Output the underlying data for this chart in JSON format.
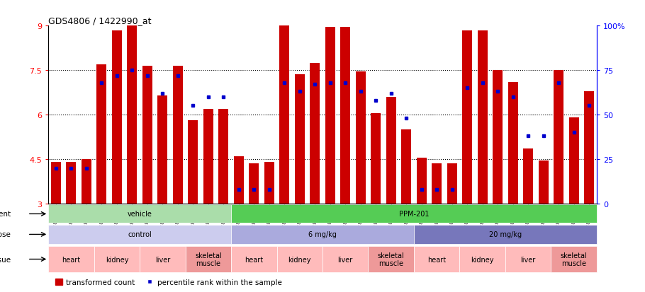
{
  "title": "GDS4806 / 1422990_at",
  "sample_ids": [
    "GSM783280",
    "GSM783281",
    "GSM783282",
    "GSM783289",
    "GSM783290",
    "GSM783291",
    "GSM783298",
    "GSM783299",
    "GSM783300",
    "GSM783307",
    "GSM783308",
    "GSM783309",
    "GSM783283",
    "GSM783284",
    "GSM783285",
    "GSM783292",
    "GSM783293",
    "GSM783294",
    "GSM783301",
    "GSM783302",
    "GSM783303",
    "GSM783310",
    "GSM783311",
    "GSM783312",
    "GSM783286",
    "GSM783287",
    "GSM783288",
    "GSM783295",
    "GSM783296",
    "GSM783297",
    "GSM783304",
    "GSM783305",
    "GSM783306",
    "GSM783313",
    "GSM783314",
    "GSM783315"
  ],
  "transformed_count": [
    4.4,
    4.4,
    4.5,
    7.7,
    8.85,
    9.0,
    7.65,
    6.65,
    7.65,
    5.8,
    6.2,
    6.2,
    4.6,
    4.35,
    4.4,
    9.0,
    7.35,
    7.75,
    8.95,
    8.95,
    7.45,
    6.05,
    6.6,
    5.5,
    4.55,
    4.35,
    4.35,
    8.85,
    8.85,
    7.5,
    7.1,
    4.85,
    4.45,
    7.5,
    5.9,
    6.8
  ],
  "percentile_rank": [
    20,
    20,
    20,
    68,
    72,
    75,
    72,
    62,
    72,
    55,
    60,
    60,
    8,
    8,
    8,
    68,
    63,
    67,
    68,
    68,
    63,
    58,
    62,
    48,
    8,
    8,
    8,
    65,
    68,
    63,
    60,
    38,
    38,
    68,
    40,
    55
  ],
  "bar_color": "#cc0000",
  "percentile_color": "#0000cc",
  "ymin": 3.0,
  "ymax": 9.0,
  "yticks_left": [
    3.0,
    4.5,
    6.0,
    7.5,
    9.0
  ],
  "ytick_labels_left": [
    "3",
    "4.5",
    "6",
    "7.5",
    "9"
  ],
  "y2min": 0,
  "y2max": 100,
  "yticks_right": [
    0,
    25,
    50,
    75,
    100
  ],
  "ytick_labels_right": [
    "0",
    "25",
    "50",
    "75",
    "100%"
  ],
  "hgrid_values": [
    4.5,
    6.0,
    7.5
  ],
  "agent_groups": [
    {
      "label": "vehicle",
      "start": 0,
      "end": 11,
      "color": "#aaddaa"
    },
    {
      "label": "PPM-201",
      "start": 12,
      "end": 35,
      "color": "#55cc55"
    }
  ],
  "dose_groups": [
    {
      "label": "control",
      "start": 0,
      "end": 11,
      "color": "#ccccee"
    },
    {
      "label": "6 mg/kg",
      "start": 12,
      "end": 23,
      "color": "#aaaadd"
    },
    {
      "label": "20 mg/kg",
      "start": 24,
      "end": 35,
      "color": "#7777bb"
    }
  ],
  "tissue_defs": [
    "heart",
    "kidney",
    "liver",
    "skeletal\nmuscle"
  ],
  "tissue_colors": [
    "#ffbbbb",
    "#ffbbbb",
    "#ffbbbb",
    "#ee9999"
  ],
  "n_dose_groups": 3,
  "n_tissues": 4,
  "bars_per_tissue": 3,
  "background_color": "#ffffff"
}
